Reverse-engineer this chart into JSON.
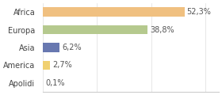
{
  "categories": [
    "Africa",
    "Europa",
    "Asia",
    "America",
    "Apolidi"
  ],
  "values": [
    52.3,
    38.8,
    6.2,
    2.7,
    0.1
  ],
  "bar_colors": [
    "#f0c080",
    "#b5c98e",
    "#6878b0",
    "#f0d070",
    "#e8e8e8"
  ],
  "labels": [
    "52,3%",
    "38,8%",
    "6,2%",
    "2,7%",
    "0,1%"
  ],
  "xlim": [
    0,
    65
  ],
  "background_color": "#ffffff",
  "label_fontsize": 7.0,
  "tick_fontsize": 7.0,
  "bar_height": 0.52
}
